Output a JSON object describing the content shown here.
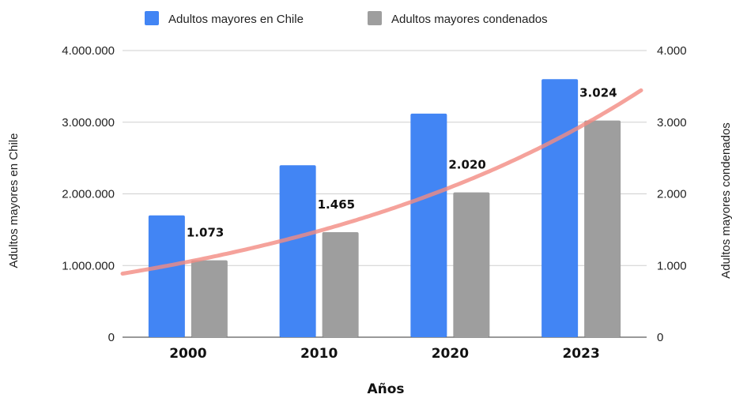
{
  "chart_data": {
    "type": "bar",
    "categories": [
      "2000",
      "2010",
      "2020",
      "2023"
    ],
    "series": [
      {
        "name": "Adultos mayores en Chile",
        "values": [
          1700000,
          2400000,
          3120000,
          3600000
        ],
        "color": "#4285f4",
        "axis": "left"
      },
      {
        "name": "Adultos mayores condenados",
        "values": [
          1073,
          1465,
          2020,
          3024
        ],
        "color": "#9e9e9e",
        "axis": "right"
      }
    ],
    "data_labels": [
      "1.073",
      "1.465",
      "2.020",
      "3.024"
    ],
    "trendline": {
      "type": "exponential",
      "series": "Adultos mayores condenados",
      "color": "#f28b82"
    },
    "xlabel": "Años",
    "ylabel_left": "Adultos mayores en Chile",
    "ylabel_right": "Adultos mayores condenados",
    "ylim_left": [
      0,
      4000000
    ],
    "ylim_right": [
      0,
      4000
    ],
    "yticks_left": [
      "0",
      "1.000.000",
      "2.000.000",
      "3.000.000",
      "4.000.000"
    ],
    "yticks_right": [
      "0",
      "1.000",
      "2.000",
      "3.000",
      "4.000"
    ],
    "grid": true,
    "legend_position": "top"
  }
}
